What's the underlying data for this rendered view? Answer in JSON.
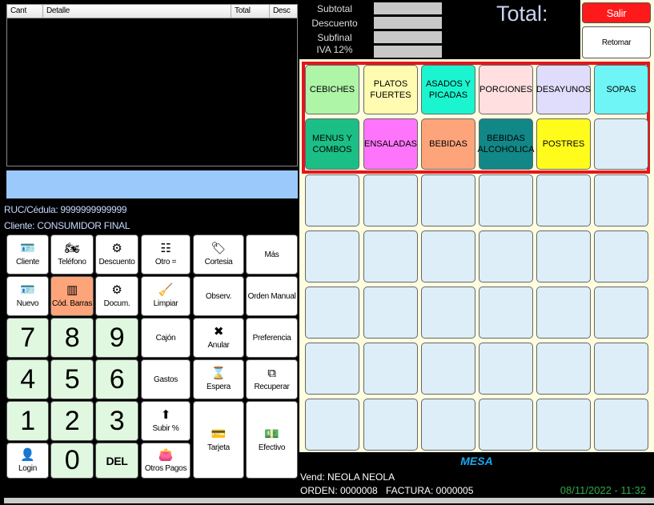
{
  "order_table": {
    "columns": [
      "Cant",
      "Detalle",
      "Total",
      "Desc"
    ]
  },
  "customer": {
    "ruc": "RUC/Cédula: 9999999999999",
    "client": "Cliente: CONSUMIDOR FINAL"
  },
  "totals": {
    "labels": [
      "Subtotal",
      "Descuento",
      "Subfinal",
      "IVA 12%"
    ],
    "total_label": "Total:"
  },
  "actions": {
    "salir": "Salir",
    "retomar": "Retomar"
  },
  "buttons": [
    {
      "label": "Cliente",
      "icon": "id-card-icon",
      "glyph": "🪪"
    },
    {
      "label": "Teléfono",
      "icon": "motorcycle-icon",
      "glyph": "🏍"
    },
    {
      "label": "Descuento",
      "icon": "discount-icon",
      "glyph": "⚙"
    },
    {
      "label": "Otro =",
      "icon": "list-add-icon",
      "glyph": "☷"
    },
    {
      "label": "Cortesia",
      "icon": "tag-icon",
      "glyph": "🏷"
    },
    {
      "label": "Más",
      "icon": "",
      "glyph": ""
    },
    {
      "label": "Nuevo",
      "icon": "id-card-icon",
      "glyph": "🪪"
    },
    {
      "label": "Cód. Barras",
      "icon": "barcode-icon",
      "glyph": "▥"
    },
    {
      "label": "Docum.",
      "icon": "gear-document-icon",
      "glyph": "⚙"
    },
    {
      "label": "Limpiar",
      "icon": "broom-icon",
      "glyph": "🧹"
    },
    {
      "label": "Observ.",
      "icon": "",
      "glyph": ""
    },
    {
      "label": "Orden Manual",
      "icon": "",
      "glyph": ""
    },
    {
      "label": "Cajón",
      "icon": "",
      "glyph": ""
    },
    {
      "label": "Anular",
      "icon": "cancel-ticket-icon",
      "glyph": "✖"
    },
    {
      "label": "Preferencia",
      "icon": "",
      "glyph": ""
    },
    {
      "label": "Gastos",
      "icon": "",
      "glyph": ""
    },
    {
      "label": "Espera",
      "icon": "wait-icon",
      "glyph": "⌛"
    },
    {
      "label": "Recuperar",
      "icon": "recover-window-icon",
      "glyph": "⧉"
    },
    {
      "label": "Subir %",
      "icon": "arrow-up-circle-icon",
      "glyph": "⬆"
    },
    {
      "label": "Tarjeta",
      "icon": "credit-card-icon",
      "glyph": "💳"
    },
    {
      "label": "Efectivo",
      "icon": "cash-icon",
      "glyph": "💵"
    },
    {
      "label": "Login",
      "icon": "user-icon",
      "glyph": "👤"
    },
    {
      "label": "Otros Pagos",
      "icon": "wallet-icon",
      "glyph": "👛"
    },
    {
      "label": "DEL",
      "icon": "",
      "glyph": ""
    }
  ],
  "keypad": [
    "7",
    "8",
    "9",
    "4",
    "5",
    "6",
    "1",
    "2",
    "3",
    "0"
  ],
  "categories": [
    {
      "label": "CEBICHES",
      "color": "#aef5a8"
    },
    {
      "label": "PLATOS FUERTES",
      "color": "#fffbb0"
    },
    {
      "label": "ASADOS Y PICADAS",
      "color": "#1af5cf"
    },
    {
      "label": "PORCIONES",
      "color": "#ffdfe0"
    },
    {
      "label": "DESAYUNOS",
      "color": "#e0dcfb"
    },
    {
      "label": "SOPAS",
      "color": "#6ff5f5"
    },
    {
      "label": "MENUS Y COMBOS",
      "color": "#1bbf86"
    },
    {
      "label": "ENSALADAS",
      "color": "#fe75fb"
    },
    {
      "label": "BEBIDAS",
      "color": "#fda47a"
    },
    {
      "label": "BEBIDAS ALCOHOLICA",
      "color": "#128787"
    },
    {
      "label": "POSTRES",
      "color": "#fffc1c"
    },
    {
      "label": "",
      "color": "#ddeef8"
    }
  ],
  "footer": {
    "mesa": "MESA",
    "vendor": "Vend: NEOLA NEOLA",
    "orden": "ORDEN: 0000008",
    "factura": "FACTURA:  0000005",
    "datetime": "08/11/2022 - 11:32"
  }
}
